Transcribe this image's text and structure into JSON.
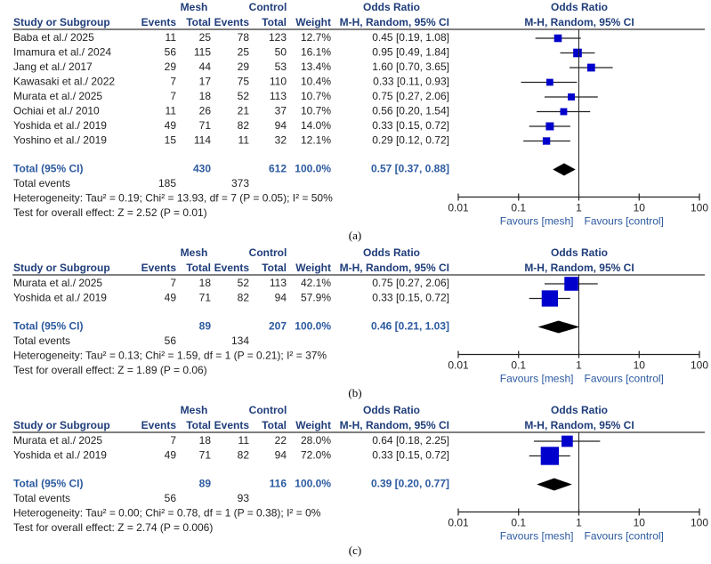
{
  "headers": {
    "group1": "Mesh",
    "group2": "Control",
    "or_title": "Odds Ratio",
    "study": "Study or Subgroup",
    "events": "Events",
    "total": "Total",
    "weight": "Weight",
    "method": "M-H, Random, 95% CI"
  },
  "colors": {
    "header": "#1f3d7a",
    "total": "#2c5aa0",
    "marker": "#0000cc",
    "diamond": "#000000"
  },
  "chart_data": [
    {
      "type": "forest",
      "caption": "(a)",
      "studies": [
        {
          "name": "Baba et al./ 2025",
          "mesh_events": "11",
          "mesh_total": "25",
          "control_events": "78",
          "control_total": "123",
          "weight": "12.7%",
          "or": 0.45,
          "lo": 0.19,
          "hi": 1.08,
          "or_label": "0.45 [0.19, 1.08]"
        },
        {
          "name": "Imamura et al./ 2024",
          "mesh_events": "56",
          "mesh_total": "115",
          "control_events": "25",
          "control_total": "50",
          "weight": "16.1%",
          "or": 0.95,
          "lo": 0.49,
          "hi": 1.84,
          "or_label": "0.95 [0.49, 1.84]"
        },
        {
          "name": "Jang et al./ 2017",
          "mesh_events": "29",
          "mesh_total": "44",
          "control_events": "29",
          "control_total": "53",
          "weight": "13.4%",
          "or": 1.6,
          "lo": 0.7,
          "hi": 3.65,
          "or_label": "1.60 [0.70, 3.65]"
        },
        {
          "name": "Kawasaki et al./ 2022",
          "mesh_events": "7",
          "mesh_total": "17",
          "control_events": "75",
          "control_total": "110",
          "weight": "10.4%",
          "or": 0.33,
          "lo": 0.11,
          "hi": 0.93,
          "or_label": "0.33 [0.11, 0.93]"
        },
        {
          "name": "Murata et al./ 2025",
          "mesh_events": "7",
          "mesh_total": "18",
          "control_events": "52",
          "control_total": "113",
          "weight": "10.7%",
          "or": 0.75,
          "lo": 0.27,
          "hi": 2.06,
          "or_label": "0.75 [0.27, 2.06]"
        },
        {
          "name": "Ochiai et al./ 2010",
          "mesh_events": "11",
          "mesh_total": "26",
          "control_events": "21",
          "control_total": "37",
          "weight": "10.7%",
          "or": 0.56,
          "lo": 0.2,
          "hi": 1.54,
          "or_label": "0.56 [0.20, 1.54]"
        },
        {
          "name": "Yoshida et al./ 2019",
          "mesh_events": "49",
          "mesh_total": "71",
          "control_events": "82",
          "control_total": "94",
          "weight": "14.0%",
          "or": 0.33,
          "lo": 0.15,
          "hi": 0.72,
          "or_label": "0.33 [0.15, 0.72]"
        },
        {
          "name": "Yoshino et al./ 2019",
          "mesh_events": "15",
          "mesh_total": "114",
          "control_events": "11",
          "control_total": "32",
          "weight": "12.1%",
          "or": 0.29,
          "lo": 0.12,
          "hi": 0.72,
          "or_label": "0.29 [0.12, 0.72]"
        }
      ],
      "total": {
        "label": "Total (95% CI)",
        "mesh_total": "430",
        "control_total": "612",
        "weight": "100.0%",
        "or": 0.57,
        "lo": 0.37,
        "hi": 0.88,
        "or_label": "0.57 [0.37, 0.88]"
      },
      "total_events": {
        "label": "Total events",
        "mesh": "185",
        "control": "373"
      },
      "heterogeneity": "Heterogeneity: Tau² = 0.19; Chi² = 13.93, df = 7 (P = 0.05); I² = 50%",
      "overall_effect": "Test for overall effect: Z = 2.52 (P = 0.01)",
      "x_ticks": [
        "0.01",
        "0.1",
        "1",
        "10",
        "100"
      ],
      "xlim": [
        0.01,
        100
      ],
      "xscale": "log",
      "favours_left": "Favours [mesh]",
      "favours_right": "Favours [control]"
    },
    {
      "type": "forest",
      "caption": "(b)",
      "studies": [
        {
          "name": "Murata et al./ 2025",
          "mesh_events": "7",
          "mesh_total": "18",
          "control_events": "52",
          "control_total": "113",
          "weight": "42.1%",
          "or": 0.75,
          "lo": 0.27,
          "hi": 2.06,
          "or_label": "0.75 [0.27, 2.06]"
        },
        {
          "name": "Yoshida et al./ 2019",
          "mesh_events": "49",
          "mesh_total": "71",
          "control_events": "82",
          "control_total": "94",
          "weight": "57.9%",
          "or": 0.33,
          "lo": 0.15,
          "hi": 0.72,
          "or_label": "0.33 [0.15, 0.72]"
        }
      ],
      "total": {
        "label": "Total (95% CI)",
        "mesh_total": "89",
        "control_total": "207",
        "weight": "100.0%",
        "or": 0.46,
        "lo": 0.21,
        "hi": 1.03,
        "or_label": "0.46 [0.21, 1.03]"
      },
      "total_events": {
        "label": "Total events",
        "mesh": "56",
        "control": "134"
      },
      "heterogeneity": "Heterogeneity: Tau² = 0.13; Chi² = 1.59, df = 1 (P = 0.21); I² = 37%",
      "overall_effect": "Test for overall effect: Z = 1.89 (P = 0.06)",
      "x_ticks": [
        "0.01",
        "0.1",
        "1",
        "10",
        "100"
      ],
      "xlim": [
        0.01,
        100
      ],
      "xscale": "log",
      "favours_left": "Favours [mesh]",
      "favours_right": "Favours [control]"
    },
    {
      "type": "forest",
      "caption": "(c)",
      "studies": [
        {
          "name": "Murata et al./ 2025",
          "mesh_events": "7",
          "mesh_total": "18",
          "control_events": "11",
          "control_total": "22",
          "weight": "28.0%",
          "or": 0.64,
          "lo": 0.18,
          "hi": 2.25,
          "or_label": "0.64 [0.18, 2.25]"
        },
        {
          "name": "Yoshida et al./ 2019",
          "mesh_events": "49",
          "mesh_total": "71",
          "control_events": "82",
          "control_total": "94",
          "weight": "72.0%",
          "or": 0.33,
          "lo": 0.15,
          "hi": 0.72,
          "or_label": "0.33 [0.15, 0.72]"
        }
      ],
      "total": {
        "label": "Total (95% CI)",
        "mesh_total": "89",
        "control_total": "116",
        "weight": "100.0%",
        "or": 0.39,
        "lo": 0.2,
        "hi": 0.77,
        "or_label": "0.39 [0.20, 0.77]"
      },
      "total_events": {
        "label": "Total events",
        "mesh": "56",
        "control": "93"
      },
      "heterogeneity": "Heterogeneity: Tau² = 0.00; Chi² = 0.78, df = 1 (P = 0.38); I² = 0%",
      "overall_effect": "Test for overall effect: Z = 2.74 (P = 0.006)",
      "x_ticks": [
        "0.01",
        "0.1",
        "1",
        "10",
        "100"
      ],
      "xlim": [
        0.01,
        100
      ],
      "xscale": "log",
      "favours_left": "Favours [mesh]",
      "favours_right": "Favours [control]"
    }
  ]
}
